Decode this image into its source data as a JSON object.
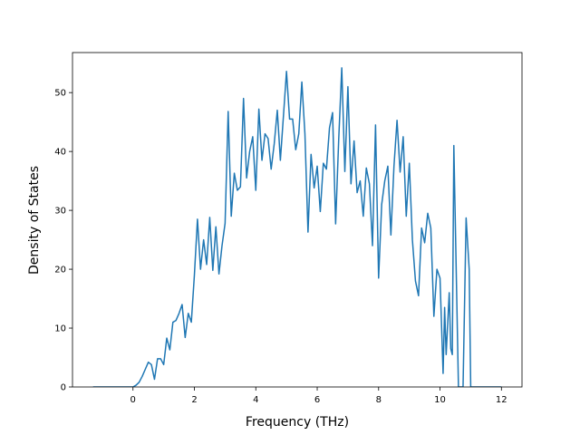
{
  "chart_data": {
    "type": "line",
    "xlabel": "Frequency (THz)",
    "ylabel": "Density of States",
    "x": [
      -1.3,
      0.0,
      0.1,
      0.2,
      0.3,
      0.4,
      0.5,
      0.6,
      0.7,
      0.8,
      0.9,
      1.0,
      1.1,
      1.2,
      1.3,
      1.4,
      1.5,
      1.6,
      1.7,
      1.8,
      1.9,
      2.0,
      2.1,
      2.2,
      2.3,
      2.4,
      2.5,
      2.6,
      2.7,
      2.8,
      2.9,
      3.0,
      3.1,
      3.2,
      3.3,
      3.4,
      3.5,
      3.6,
      3.7,
      3.8,
      3.9,
      4.0,
      4.1,
      4.2,
      4.3,
      4.4,
      4.5,
      4.6,
      4.7,
      4.8,
      4.9,
      5.0,
      5.1,
      5.2,
      5.3,
      5.4,
      5.5,
      5.6,
      5.7,
      5.8,
      5.9,
      6.0,
      6.1,
      6.2,
      6.3,
      6.4,
      6.5,
      6.6,
      6.7,
      6.8,
      6.9,
      7.0,
      7.1,
      7.2,
      7.3,
      7.4,
      7.5,
      7.6,
      7.7,
      7.8,
      7.9,
      8.0,
      8.1,
      8.2,
      8.3,
      8.4,
      8.5,
      8.6,
      8.7,
      8.8,
      8.9,
      9.0,
      9.1,
      9.2,
      9.3,
      9.4,
      9.5,
      9.6,
      9.7,
      9.8,
      9.9,
      10.0,
      10.1,
      10.15,
      10.2,
      10.3,
      10.35,
      10.4,
      10.45,
      10.6,
      10.75,
      10.85,
      10.95,
      11.0,
      12.0
    ],
    "values": [
      0,
      0,
      0.3,
      0.8,
      1.8,
      3,
      4.2,
      3.8,
      1.3,
      4.8,
      4.8,
      3.8,
      8.3,
      6.3,
      11,
      11.3,
      12.5,
      14,
      8.4,
      12.5,
      11,
      19,
      28.5,
      20,
      25,
      20.8,
      28.8,
      19.8,
      27.2,
      19.2,
      24,
      27.8,
      46.8,
      29,
      36.3,
      33.4,
      34,
      49,
      35.5,
      40,
      42.5,
      33.4,
      47.2,
      38.5,
      43,
      42.2,
      37,
      41.3,
      47,
      38.5,
      46,
      53.6,
      45.5,
      45.5,
      40.3,
      43,
      51.8,
      43,
      26.3,
      39.5,
      33.8,
      37.5,
      29.8,
      38,
      37,
      44,
      46.6,
      27.7,
      42,
      54.2,
      36.6,
      51,
      34.5,
      41.8,
      33,
      35,
      29,
      37.2,
      34.5,
      24,
      44.5,
      18.5,
      31,
      35,
      37.5,
      25.8,
      37.5,
      45.3,
      36.5,
      42.5,
      29,
      38,
      25,
      18,
      15.5,
      27,
      24.5,
      29.5,
      27,
      12,
      20,
      18.5,
      2.3,
      13.5,
      5.5,
      16,
      6.5,
      5.5,
      41,
      0,
      0,
      28.7,
      20,
      0,
      0
    ],
    "color": "#1f77b4",
    "xlim": [
      -1.97,
      12.67
    ],
    "ylim": [
      0,
      56.8
    ],
    "xticks": [
      0,
      2,
      4,
      6,
      8,
      10,
      12
    ],
    "yticks": [
      0,
      10,
      20,
      30,
      40,
      50
    ]
  }
}
